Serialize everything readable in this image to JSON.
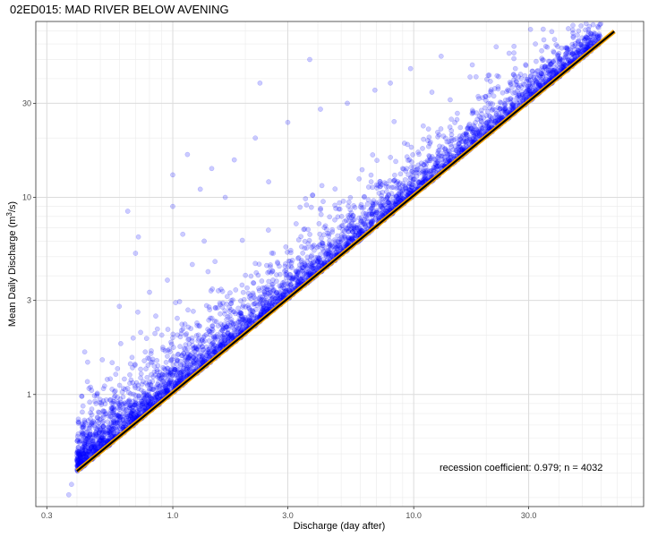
{
  "chart_data": {
    "type": "scatter",
    "title": "02ED015: MAD RIVER BELOW AVENING",
    "xlabel": "Discharge (day after)",
    "ylabel_prefix": "Mean Daily Discharge  (m",
    "ylabel_sup": "3",
    "ylabel_suffix": "/s)",
    "x_scale": "log10",
    "y_scale": "log10",
    "xlim": [
      0.27,
      90
    ],
    "ylim": [
      0.27,
      78
    ],
    "x_ticks": [
      0.3,
      1.0,
      3.0,
      10.0,
      30.0
    ],
    "x_tick_labels": [
      "0.3",
      "1.0",
      "3.0",
      "10.0",
      "30.0"
    ],
    "y_ticks": [
      1,
      3,
      10,
      30
    ],
    "y_tick_labels": [
      "1",
      "3",
      "10",
      "30"
    ],
    "grid": true,
    "point_color": "#0000ff",
    "point_opacity": 0.2,
    "fit_line": {
      "slope": 0.979,
      "x_range": [
        0.4,
        68
      ],
      "color": "#000000",
      "band_color": "#f5a300"
    },
    "annotation": "recession coefficient: 0.979; n = 4032",
    "n": 4032,
    "outliers": [
      {
        "x": 0.37,
        "y": 0.31
      },
      {
        "x": 0.38,
        "y": 0.35
      },
      {
        "x": 0.46,
        "y": 1.05
      },
      {
        "x": 0.51,
        "y": 1.5
      },
      {
        "x": 0.56,
        "y": 1.45
      },
      {
        "x": 0.6,
        "y": 2.8
      },
      {
        "x": 0.65,
        "y": 8.5
      },
      {
        "x": 0.7,
        "y": 5.2
      },
      {
        "x": 0.72,
        "y": 6.3
      },
      {
        "x": 0.8,
        "y": 3.3
      },
      {
        "x": 0.85,
        "y": 2.5
      },
      {
        "x": 0.95,
        "y": 3.8
      },
      {
        "x": 1.0,
        "y": 9.0
      },
      {
        "x": 1.0,
        "y": 13.0
      },
      {
        "x": 1.1,
        "y": 6.5
      },
      {
        "x": 1.15,
        "y": 16.5
      },
      {
        "x": 1.3,
        "y": 11.0
      },
      {
        "x": 1.35,
        "y": 6.0
      },
      {
        "x": 1.4,
        "y": 4.2
      },
      {
        "x": 1.45,
        "y": 14.0
      },
      {
        "x": 1.65,
        "y": 10.0
      },
      {
        "x": 1.8,
        "y": 15.5
      },
      {
        "x": 2.2,
        "y": 20.0
      },
      {
        "x": 2.3,
        "y": 38.0
      },
      {
        "x": 2.5,
        "y": 12.0
      },
      {
        "x": 3.0,
        "y": 24.0
      },
      {
        "x": 3.7,
        "y": 50.0
      },
      {
        "x": 4.1,
        "y": 28.0
      },
      {
        "x": 5.3,
        "y": 30.0
      },
      {
        "x": 6.9,
        "y": 35.0
      },
      {
        "x": 8.0,
        "y": 38.0
      },
      {
        "x": 9.7,
        "y": 45.0
      },
      {
        "x": 13.0,
        "y": 52.0
      },
      {
        "x": 17.5,
        "y": 47.0
      },
      {
        "x": 22.0,
        "y": 58.0
      },
      {
        "x": 26.0,
        "y": 42.0
      },
      {
        "x": 32.0,
        "y": 60.0
      },
      {
        "x": 38.0,
        "y": 55.0
      },
      {
        "x": 0.42,
        "y": 0.62
      },
      {
        "x": 0.48,
        "y": 0.9
      },
      {
        "x": 0.55,
        "y": 1.2
      },
      {
        "x": 0.9,
        "y": 2.0
      }
    ]
  }
}
